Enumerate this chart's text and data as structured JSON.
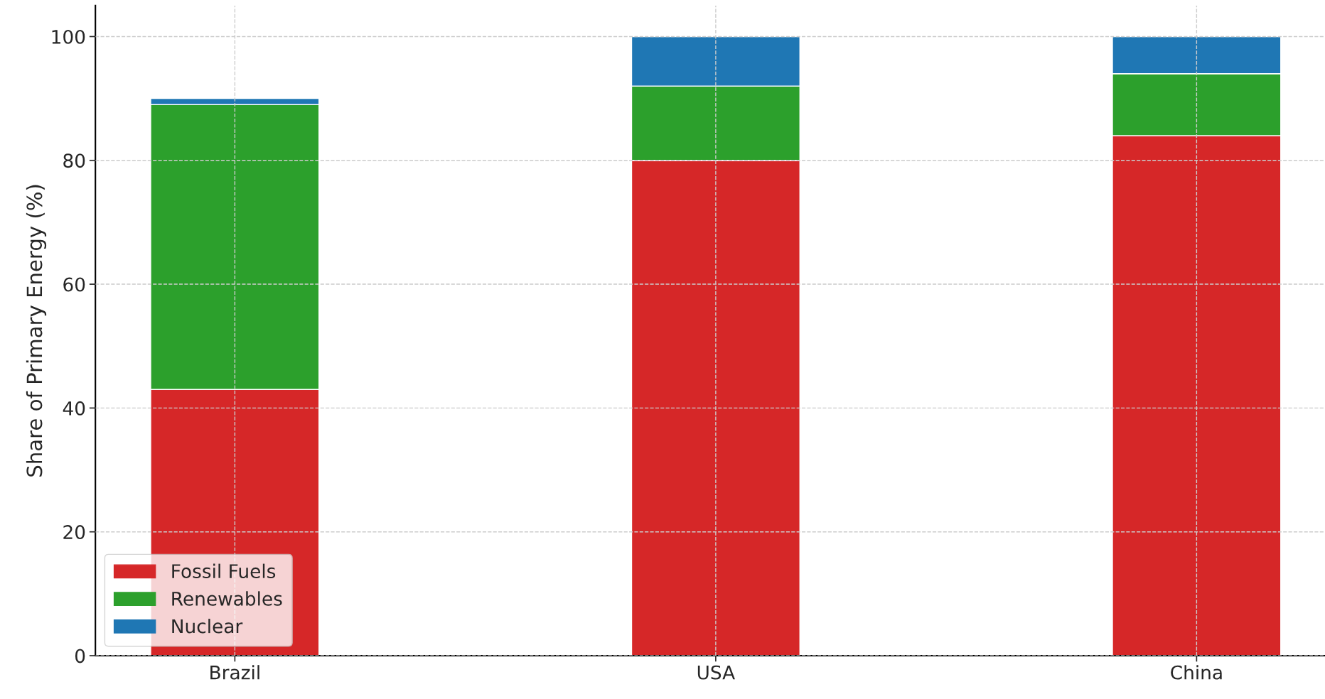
{
  "chart_data": {
    "type": "bar",
    "stacked": true,
    "ylabel": "Share of Primary Energy (%)",
    "categories": [
      "Brazil",
      "USA",
      "China"
    ],
    "series": [
      {
        "name": "Fossil Fuels",
        "color": "#d62728",
        "values": [
          43,
          80,
          84
        ]
      },
      {
        "name": "Renewables",
        "color": "#2ca02c",
        "values": [
          46,
          12,
          10
        ]
      },
      {
        "name": "Nuclear",
        "color": "#1f77b4",
        "values": [
          1,
          8,
          6
        ]
      }
    ],
    "ylim": [
      0,
      105
    ],
    "yticks": [
      0,
      20,
      40,
      60,
      80,
      100
    ],
    "grid": true,
    "legend": "bottom left"
  }
}
